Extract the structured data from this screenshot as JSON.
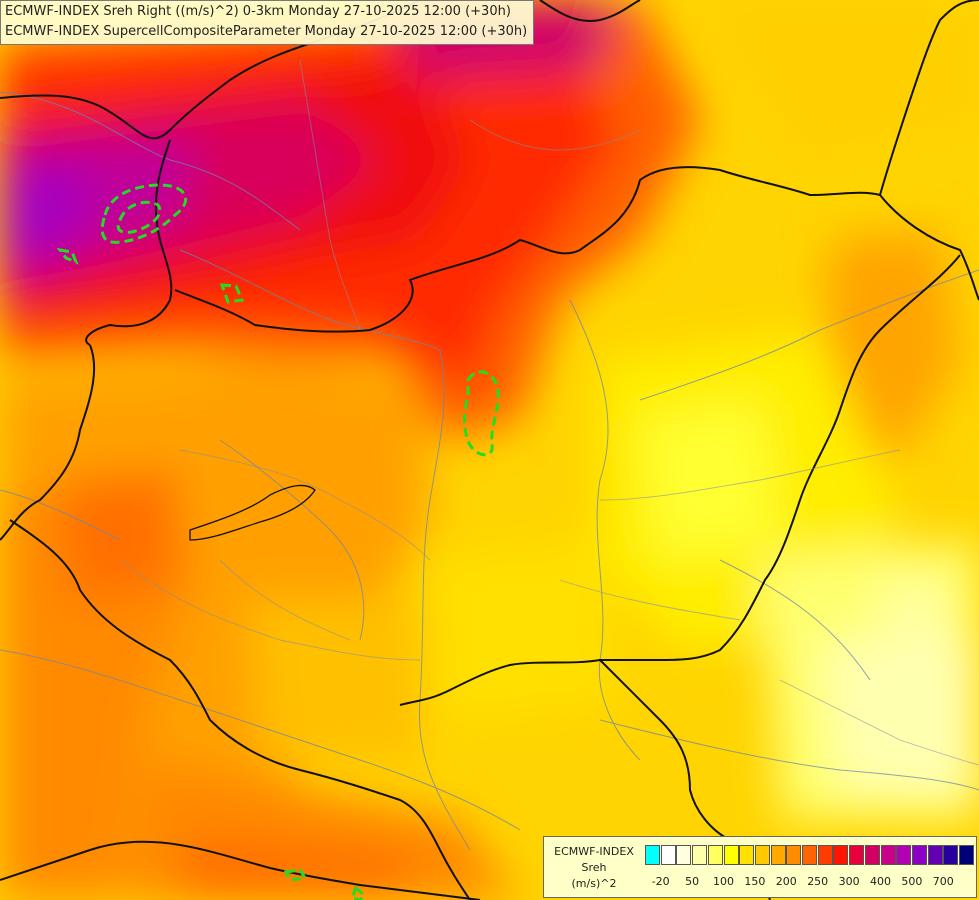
{
  "title": {
    "line1": "ECMWF-INDEX Sreh Right ((m/s)^2) 0-3km Monday 27-10-2025 12:00 (+30h)",
    "line2": "ECMWF-INDEX SupercellCompositeParameter Monday 27-10-2025 12:00 (+30h)"
  },
  "legend": {
    "source": "ECMWF-INDEX",
    "variable": "Sreh",
    "units": "(m/s)^2",
    "colors": [
      "#00ffff",
      "#ffffff",
      "#ffffe0",
      "#ffffa8",
      "#ffff60",
      "#ffff00",
      "#ffe000",
      "#ffc800",
      "#ffa800",
      "#ff8c00",
      "#ff6400",
      "#ff3c00",
      "#ff1400",
      "#e6003c",
      "#d20064",
      "#c8008c",
      "#b400b4",
      "#8c00c8",
      "#6400b4",
      "#2800a0",
      "#000078"
    ],
    "tick_labels": [
      "-20",
      "50",
      "100",
      "150",
      "200",
      "250",
      "300",
      "400",
      "500",
      "700"
    ]
  },
  "contour_color": "#22dd22"
}
